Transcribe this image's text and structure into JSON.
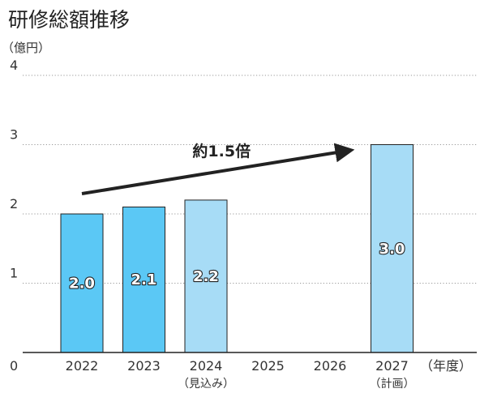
{
  "chart_data": {
    "type": "bar",
    "title": "研修総額推移",
    "ylabel": "（億円）",
    "xlabel": "（年度）",
    "ylim": [
      0,
      4
    ],
    "yticks": [
      0,
      1,
      2,
      3,
      4
    ],
    "grid": true,
    "categories": [
      "2022",
      "2023",
      "2024",
      "2025",
      "2026",
      "2027"
    ],
    "category_notes": [
      "",
      "",
      "（見込み）",
      "",
      "",
      "（計画）"
    ],
    "values": [
      2.0,
      2.1,
      2.2,
      null,
      null,
      3.0
    ],
    "value_labels": [
      "2.0",
      "2.1",
      "2.2",
      "",
      "",
      "3.0"
    ],
    "bar_kinds": [
      "actual",
      "actual",
      "forecast",
      "none",
      "none",
      "forecast"
    ],
    "colors": {
      "actual": "#5bc8f5",
      "forecast": "#a7dcf6",
      "outline": "#222222",
      "grid": "#9a9a9a"
    },
    "annotation": {
      "text": "約1.5倍",
      "from_category": "2022",
      "to_category": "2027"
    }
  }
}
